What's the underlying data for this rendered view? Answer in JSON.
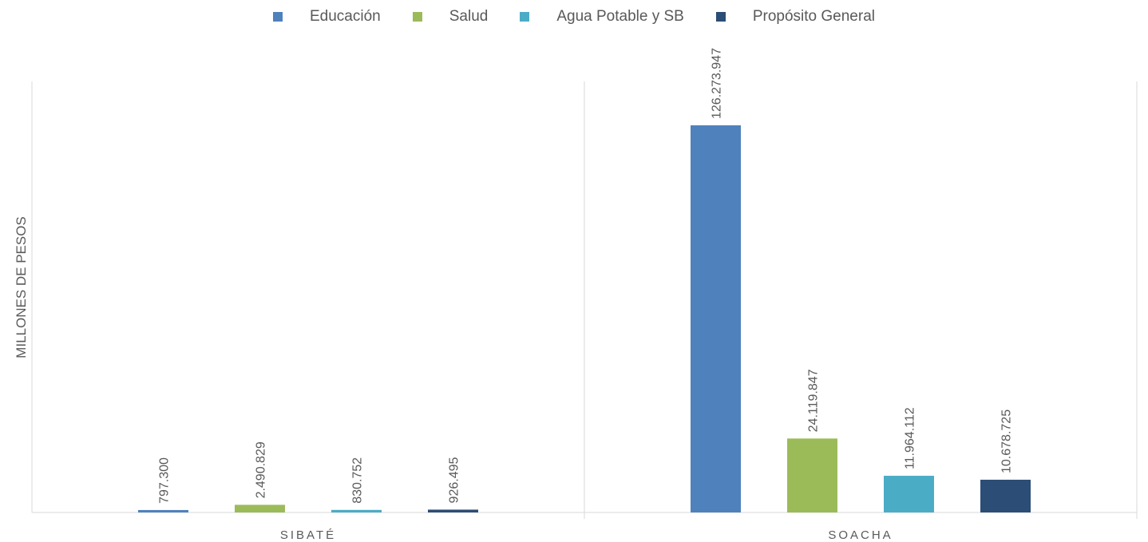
{
  "chart_data": {
    "type": "bar",
    "categories": [
      "SIBATÉ",
      "SOACHA"
    ],
    "ylabel": "MILLONES DE PESOS",
    "xlabel": "",
    "ylim": [
      0,
      126273947
    ],
    "legend_position": "top",
    "grid": false,
    "series": [
      {
        "name": "Educación",
        "color": "#4F81BD",
        "values": [
          797300,
          126273947
        ],
        "labels": [
          "797.300",
          "126.273.947"
        ]
      },
      {
        "name": "Salud",
        "color": "#9BBB59",
        "values": [
          2490829,
          24119847
        ],
        "labels": [
          "2.490.829",
          "24.119.847"
        ]
      },
      {
        "name": "Agua Potable y SB",
        "color": "#4BACC6",
        "values": [
          830752,
          11964112
        ],
        "labels": [
          "830.752",
          "11.964.112"
        ]
      },
      {
        "name": "Propósito General",
        "color": "#2C4D75",
        "values": [
          926495,
          10678725
        ],
        "labels": [
          "926.495",
          "10.678.725"
        ]
      }
    ]
  }
}
